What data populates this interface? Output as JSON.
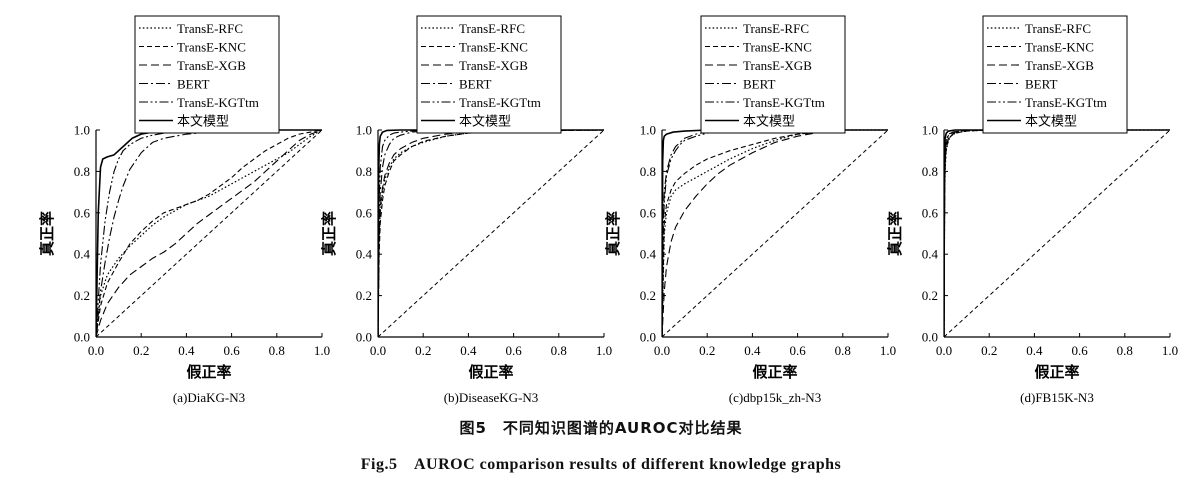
{
  "figure": {
    "caption_cn": "图5　不同知识图谱的AUROC对比结果",
    "caption_en": "Fig.5　AUROC comparison results of different knowledge graphs"
  },
  "legend_labels": [
    "TransE-RFC",
    "TransE-KNC",
    "TransE-XGB",
    "BERT",
    "TransE-KGTtm",
    "本文模型"
  ],
  "series_styles": [
    {
      "name": "TransE-RFC",
      "dash": "1.6,2.2",
      "width": 1.2
    },
    {
      "name": "TransE-KNC",
      "dash": "5,3",
      "width": 1.1
    },
    {
      "name": "TransE-XGB",
      "dash": "8,4",
      "width": 1.1
    },
    {
      "name": "BERT",
      "dash": "9,3,2,3",
      "width": 1.1
    },
    {
      "name": "TransE-KGTtm",
      "dash": "9,2.5,2,2.5,2,2.5",
      "width": 1.1
    },
    {
      "name": "本文模型",
      "dash": "",
      "width": 1.6
    }
  ],
  "chart_data": [
    {
      "type": "line",
      "subtitle": "(a)DiaKG-N3",
      "xlabel": "假正率",
      "ylabel": "真正率",
      "xlim": [
        0,
        1
      ],
      "ylim": [
        0,
        1
      ],
      "xticks": [
        "0.0",
        "0.2",
        "0.4",
        "0.6",
        "0.8",
        "1.0"
      ],
      "yticks": [
        "0.0",
        "0.2",
        "0.4",
        "0.6",
        "0.8",
        "1.0"
      ],
      "legend_position": "top",
      "series": [
        {
          "name": "TransE-RFC",
          "x": [
            0,
            0.02,
            0.05,
            0.1,
            0.15,
            0.2,
            0.25,
            0.3,
            0.35,
            0.4,
            0.45,
            0.5,
            0.55,
            0.6,
            0.65,
            0.7,
            0.75,
            0.8,
            0.85,
            0.9,
            0.95,
            1.0
          ],
          "y": [
            0,
            0.2,
            0.3,
            0.38,
            0.44,
            0.49,
            0.54,
            0.58,
            0.61,
            0.64,
            0.66,
            0.68,
            0.71,
            0.74,
            0.77,
            0.8,
            0.83,
            0.86,
            0.89,
            0.93,
            0.97,
            1.0
          ]
        },
        {
          "name": "TransE-KNC",
          "x": [
            0,
            0.02,
            0.05,
            0.1,
            0.15,
            0.2,
            0.25,
            0.3,
            0.35,
            0.4,
            0.45,
            0.5,
            0.55,
            0.6,
            0.65,
            0.7,
            0.75,
            0.8,
            0.85,
            0.9,
            0.95,
            1.0
          ],
          "y": [
            0,
            0.15,
            0.26,
            0.36,
            0.45,
            0.51,
            0.56,
            0.6,
            0.62,
            0.64,
            0.66,
            0.69,
            0.73,
            0.77,
            0.82,
            0.86,
            0.9,
            0.93,
            0.96,
            0.98,
            0.99,
            1.0
          ]
        },
        {
          "name": "TransE-XGB",
          "x": [
            0,
            0.02,
            0.05,
            0.1,
            0.15,
            0.2,
            0.25,
            0.3,
            0.35,
            0.4,
            0.45,
            0.5,
            0.55,
            0.6,
            0.65,
            0.7,
            0.75,
            0.8,
            0.85,
            0.9,
            0.95,
            1.0
          ],
          "y": [
            0,
            0.08,
            0.16,
            0.24,
            0.3,
            0.34,
            0.38,
            0.41,
            0.45,
            0.5,
            0.55,
            0.59,
            0.63,
            0.67,
            0.71,
            0.75,
            0.8,
            0.85,
            0.9,
            0.95,
            0.98,
            1.0
          ]
        },
        {
          "name": "BERT",
          "x": [
            0,
            0.02,
            0.04,
            0.06,
            0.08,
            0.1,
            0.12,
            0.15,
            0.2,
            0.25,
            0.3,
            0.4,
            0.5,
            0.6,
            0.8,
            1.0
          ],
          "y": [
            0,
            0.22,
            0.36,
            0.48,
            0.58,
            0.66,
            0.73,
            0.81,
            0.89,
            0.94,
            0.96,
            0.98,
            0.99,
            0.995,
            1.0,
            1.0
          ]
        },
        {
          "name": "TransE-KGTtm",
          "x": [
            0,
            0.02,
            0.04,
            0.06,
            0.08,
            0.1,
            0.12,
            0.15,
            0.2,
            0.25,
            0.3,
            0.4,
            0.5,
            0.6,
            0.8,
            1.0
          ],
          "y": [
            0,
            0.35,
            0.56,
            0.7,
            0.8,
            0.86,
            0.9,
            0.93,
            0.96,
            0.975,
            0.985,
            0.99,
            0.995,
            1.0,
            1.0,
            1.0
          ]
        },
        {
          "name": "本文模型",
          "x": [
            0,
            0.01,
            0.02,
            0.03,
            0.05,
            0.08,
            0.1,
            0.13,
            0.16,
            0.2,
            0.25,
            0.3,
            0.4,
            0.6,
            1.0
          ],
          "y": [
            0,
            0.6,
            0.82,
            0.86,
            0.87,
            0.88,
            0.9,
            0.93,
            0.96,
            0.98,
            0.99,
            0.995,
            1.0,
            1.0,
            1.0
          ]
        },
        {
          "name": "",
          "x": [
            0,
            1
          ],
          "y": [
            0,
            1
          ]
        }
      ]
    },
    {
      "type": "line",
      "subtitle": "(b)DiseaseKG-N3",
      "xlabel": "假正率",
      "ylabel": "真正率",
      "xlim": [
        0,
        1
      ],
      "ylim": [
        0,
        1
      ],
      "xticks": [
        "0.0",
        "0.2",
        "0.4",
        "0.6",
        "0.8",
        "1.0"
      ],
      "yticks": [
        "0.0",
        "0.2",
        "0.4",
        "0.6",
        "0.8",
        "1.0"
      ],
      "legend_position": "top",
      "series": [
        {
          "name": "TransE-RFC",
          "x": [
            0,
            0.005,
            0.01,
            0.02,
            0.03,
            0.05,
            0.07,
            0.1,
            0.15,
            0.2,
            0.3,
            0.4,
            0.6,
            1.0
          ],
          "y": [
            0,
            0.45,
            0.6,
            0.7,
            0.76,
            0.82,
            0.86,
            0.89,
            0.92,
            0.94,
            0.97,
            0.985,
            0.995,
            1.0
          ]
        },
        {
          "name": "TransE-KNC",
          "x": [
            0,
            0.005,
            0.01,
            0.02,
            0.03,
            0.05,
            0.07,
            0.1,
            0.15,
            0.2,
            0.3,
            0.4,
            0.6,
            1.0
          ],
          "y": [
            0,
            0.4,
            0.55,
            0.66,
            0.73,
            0.8,
            0.85,
            0.88,
            0.92,
            0.945,
            0.97,
            0.985,
            0.995,
            1.0
          ]
        },
        {
          "name": "TransE-XGB",
          "x": [
            0,
            0.005,
            0.01,
            0.02,
            0.03,
            0.05,
            0.07,
            0.1,
            0.15,
            0.2,
            0.3,
            0.4,
            0.6,
            1.0
          ],
          "y": [
            0,
            0.5,
            0.63,
            0.72,
            0.78,
            0.84,
            0.88,
            0.91,
            0.94,
            0.96,
            0.98,
            0.99,
            0.998,
            1.0
          ]
        },
        {
          "name": "BERT",
          "x": [
            0,
            0.005,
            0.01,
            0.02,
            0.03,
            0.05,
            0.07,
            0.1,
            0.15,
            0.2,
            0.4,
            1.0
          ],
          "y": [
            0,
            0.55,
            0.7,
            0.82,
            0.88,
            0.93,
            0.96,
            0.975,
            0.99,
            0.995,
            1.0,
            1.0
          ]
        },
        {
          "name": "TransE-KGTtm",
          "x": [
            0,
            0.005,
            0.01,
            0.02,
            0.03,
            0.05,
            0.07,
            0.1,
            0.2,
            1.0
          ],
          "y": [
            0,
            0.65,
            0.82,
            0.92,
            0.95,
            0.975,
            0.985,
            0.99,
            1.0,
            1.0
          ]
        },
        {
          "name": "本文模型",
          "x": [
            0,
            0.003,
            0.006,
            0.01,
            0.02,
            0.04,
            0.1,
            1.0
          ],
          "y": [
            0,
            0.8,
            0.93,
            0.97,
            0.99,
            0.998,
            1.0,
            1.0
          ]
        },
        {
          "name": "",
          "x": [
            0,
            1
          ],
          "y": [
            0,
            1
          ]
        }
      ]
    },
    {
      "type": "line",
      "subtitle": "(c)dbp15k_zh-N3",
      "xlabel": "假正率",
      "ylabel": "真正率",
      "xlim": [
        0,
        1
      ],
      "ylim": [
        0,
        1
      ],
      "xticks": [
        "0.0",
        "0.2",
        "0.4",
        "0.6",
        "0.8",
        "1.0"
      ],
      "yticks": [
        "0.0",
        "0.2",
        "0.4",
        "0.6",
        "0.8",
        "1.0"
      ],
      "legend_position": "top",
      "series": [
        {
          "name": "TransE-RFC",
          "x": [
            0,
            0.01,
            0.02,
            0.04,
            0.06,
            0.1,
            0.15,
            0.2,
            0.25,
            0.3,
            0.4,
            0.5,
            0.6,
            0.7,
            0.8,
            1.0
          ],
          "y": [
            0,
            0.5,
            0.6,
            0.68,
            0.71,
            0.74,
            0.77,
            0.8,
            0.83,
            0.86,
            0.91,
            0.95,
            0.98,
            0.99,
            1.0,
            1.0
          ]
        },
        {
          "name": "TransE-KNC",
          "x": [
            0,
            0.01,
            0.02,
            0.04,
            0.06,
            0.1,
            0.15,
            0.2,
            0.25,
            0.3,
            0.4,
            0.5,
            0.6,
            0.7,
            0.8,
            1.0
          ],
          "y": [
            0,
            0.55,
            0.64,
            0.71,
            0.75,
            0.79,
            0.83,
            0.86,
            0.88,
            0.9,
            0.93,
            0.96,
            0.98,
            0.99,
            1.0,
            1.0
          ]
        },
        {
          "name": "TransE-XGB",
          "x": [
            0,
            0.01,
            0.02,
            0.04,
            0.06,
            0.1,
            0.15,
            0.2,
            0.25,
            0.3,
            0.35,
            0.4,
            0.5,
            0.6,
            0.7,
            0.8,
            1.0
          ],
          "y": [
            0,
            0.22,
            0.34,
            0.46,
            0.53,
            0.61,
            0.68,
            0.74,
            0.79,
            0.83,
            0.86,
            0.89,
            0.94,
            0.97,
            0.99,
            1.0,
            1.0
          ]
        },
        {
          "name": "BERT",
          "x": [
            0,
            0.005,
            0.01,
            0.02,
            0.04,
            0.06,
            0.1,
            0.15,
            0.2,
            0.3,
            0.4,
            0.6,
            1.0
          ],
          "y": [
            0,
            0.55,
            0.7,
            0.8,
            0.88,
            0.92,
            0.96,
            0.98,
            0.99,
            0.995,
            1.0,
            1.0,
            1.0
          ]
        },
        {
          "name": "TransE-KGTtm",
          "x": [
            0,
            0.005,
            0.01,
            0.02,
            0.04,
            0.06,
            0.08,
            0.1,
            0.15,
            0.2,
            0.3,
            0.5,
            1.0
          ],
          "y": [
            0,
            0.5,
            0.65,
            0.78,
            0.86,
            0.9,
            0.93,
            0.95,
            0.97,
            0.985,
            0.995,
            1.0,
            1.0
          ]
        },
        {
          "name": "本文模型",
          "x": [
            0,
            0.003,
            0.006,
            0.01,
            0.02,
            0.05,
            0.1,
            0.2,
            1.0
          ],
          "y": [
            0,
            0.85,
            0.95,
            0.97,
            0.98,
            0.99,
            0.995,
            1.0,
            1.0
          ]
        },
        {
          "name": "",
          "x": [
            0,
            1
          ],
          "y": [
            0,
            1
          ]
        }
      ]
    },
    {
      "type": "line",
      "subtitle": "(d)FB15K-N3",
      "xlabel": "假正率",
      "ylabel": "真正率",
      "xlim": [
        0,
        1
      ],
      "ylim": [
        0,
        1
      ],
      "xticks": [
        "0.0",
        "0.2",
        "0.4",
        "0.6",
        "0.8",
        "1.0"
      ],
      "yticks": [
        "0.0",
        "0.2",
        "0.4",
        "0.6",
        "0.8",
        "1.0"
      ],
      "legend_position": "top",
      "series": [
        {
          "name": "TransE-RFC",
          "x": [
            0,
            0.003,
            0.006,
            0.01,
            0.02,
            0.03,
            0.05,
            0.1,
            0.2,
            1.0
          ],
          "y": [
            0,
            0.7,
            0.83,
            0.9,
            0.95,
            0.97,
            0.985,
            0.995,
            1.0,
            1.0
          ]
        },
        {
          "name": "TransE-KNC",
          "x": [
            0,
            0.003,
            0.006,
            0.01,
            0.02,
            0.03,
            0.05,
            0.1,
            0.2,
            1.0
          ],
          "y": [
            0,
            0.72,
            0.85,
            0.91,
            0.955,
            0.97,
            0.985,
            0.995,
            1.0,
            1.0
          ]
        },
        {
          "name": "TransE-XGB",
          "x": [
            0,
            0.003,
            0.006,
            0.01,
            0.02,
            0.03,
            0.05,
            0.1,
            0.2,
            1.0
          ],
          "y": [
            0,
            0.75,
            0.87,
            0.93,
            0.96,
            0.975,
            0.99,
            0.997,
            1.0,
            1.0
          ]
        },
        {
          "name": "BERT",
          "x": [
            0,
            0.003,
            0.006,
            0.01,
            0.02,
            0.04,
            0.1,
            1.0
          ],
          "y": [
            0,
            0.8,
            0.9,
            0.95,
            0.98,
            0.99,
            1.0,
            1.0
          ]
        },
        {
          "name": "TransE-KGTtm",
          "x": [
            0,
            0.003,
            0.006,
            0.01,
            0.02,
            0.04,
            0.1,
            1.0
          ],
          "y": [
            0,
            0.78,
            0.9,
            0.95,
            0.975,
            0.99,
            1.0,
            1.0
          ]
        },
        {
          "name": "本文模型",
          "x": [
            0,
            0.002,
            0.005,
            0.01,
            0.02,
            0.05,
            1.0
          ],
          "y": [
            0,
            0.9,
            0.96,
            0.985,
            0.995,
            1.0,
            1.0
          ]
        },
        {
          "name": "",
          "x": [
            0,
            1
          ],
          "y": [
            0,
            1
          ]
        }
      ]
    }
  ]
}
